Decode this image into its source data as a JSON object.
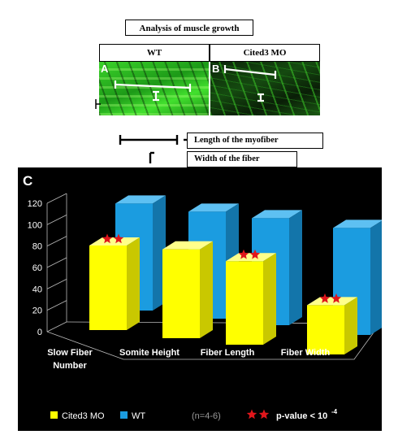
{
  "header": {
    "title": "Analysis of muscle growth"
  },
  "panels": [
    {
      "letter": "A",
      "label": "WT"
    },
    {
      "letter": "B",
      "label": "Cited3 MO"
    }
  ],
  "scale_legend": {
    "length_label": "Length of the myofiber",
    "width_label": "Width of the fiber"
  },
  "chart_data": {
    "type": "bar",
    "panel_letter": "C",
    "categories": [
      [
        "Slow Fiber",
        "Number"
      ],
      [
        "Somite Height"
      ],
      [
        "Fiber Length"
      ],
      [
        "Fiber Width"
      ]
    ],
    "series": [
      {
        "name": "Cited3 MO",
        "values": [
          79,
          83,
          78,
          46
        ],
        "color": "#ffff00"
      },
      {
        "name": "WT",
        "values": [
          100,
          100,
          100,
          100
        ],
        "color": "#1b9ce0"
      }
    ],
    "significant": [
      true,
      false,
      true,
      true
    ],
    "ylim": [
      0,
      120
    ],
    "yticks": [
      "0",
      "20",
      "40",
      "60",
      "80",
      "100",
      "120"
    ],
    "legend": {
      "n_text": "(n=4-6)",
      "pvalue_text": "p-value < 10",
      "pvalue_exp": "-4"
    }
  }
}
